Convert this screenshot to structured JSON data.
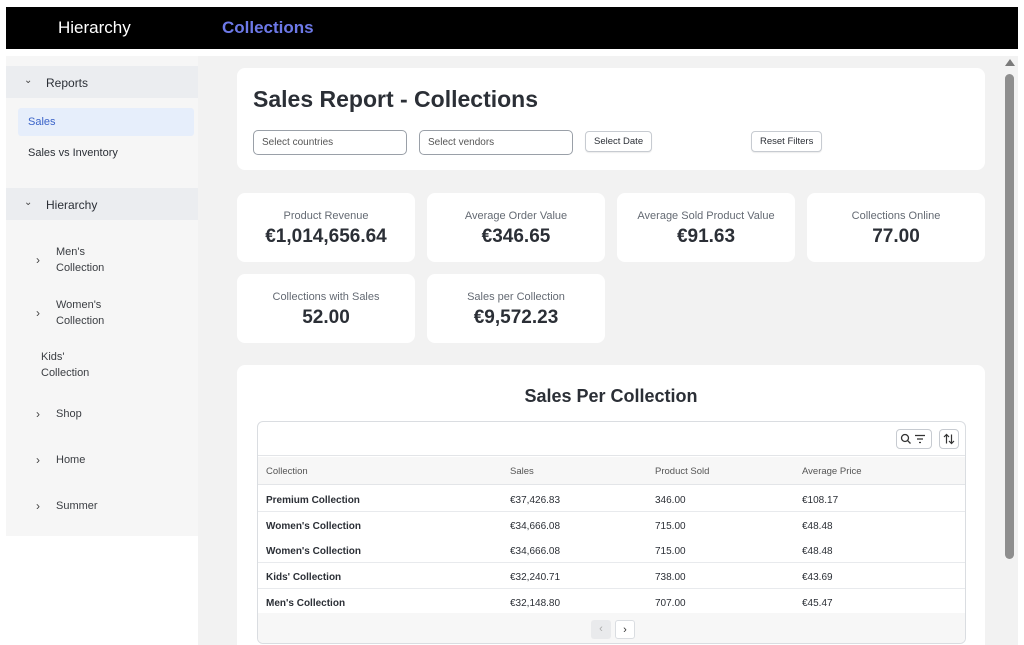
{
  "topbar": {
    "app_title": "Hierarchy",
    "page_title": "Collections"
  },
  "sidebar": {
    "reports_group": "Reports",
    "reports_items": [
      {
        "label": "Sales",
        "active": true
      },
      {
        "label": "Sales vs Inventory",
        "active": false
      }
    ],
    "hierarchy_group": "Hierarchy",
    "hierarchy_items": [
      {
        "line1": "Men's",
        "line2": "Collection",
        "has_children": true
      },
      {
        "line1": "Women's",
        "line2": "Collection",
        "has_children": true
      },
      {
        "line1": "Kids'",
        "line2": "Collection",
        "has_children": false
      },
      {
        "line1": "Shop",
        "line2": "",
        "has_children": true
      },
      {
        "line1": "Home",
        "line2": "",
        "has_children": true
      },
      {
        "line1": "Summer",
        "line2": "",
        "has_children": true
      }
    ]
  },
  "header": {
    "title": "Sales Report - Collections",
    "countries_placeholder": "Select countries",
    "vendors_placeholder": "Select vendors",
    "select_date_label": "Select Date",
    "reset_filters_label": "Reset Filters"
  },
  "kpis": [
    {
      "label": "Product Revenue",
      "value": "€1,014,656.64"
    },
    {
      "label": "Average Order Value",
      "value": "€346.65"
    },
    {
      "label": "Average Sold Product Value",
      "value": "€91.63"
    },
    {
      "label": "Collections Online",
      "value": "77.00"
    },
    {
      "label": "Collections with Sales",
      "value": "52.00"
    },
    {
      "label": "Sales per Collection",
      "value": "€9,572.23"
    }
  ],
  "table": {
    "title": "Sales Per Collection",
    "columns": [
      "Collection",
      "Sales",
      "Product Sold",
      "Average Price"
    ],
    "rows": [
      [
        "Premium Collection",
        "€37,426.83",
        "346.00",
        "€108.17"
      ],
      [
        "Women's Collection",
        "€34,666.08",
        "715.00",
        "€48.48"
      ],
      [
        "Women's Collection",
        "€34,666.08",
        "715.00",
        "€48.48"
      ],
      [
        "Kids' Collection",
        "€32,240.71",
        "738.00",
        "€43.69"
      ],
      [
        "Men's Collection",
        "€32,148.80",
        "707.00",
        "€45.47"
      ]
    ],
    "icons": {
      "search_filter": "search-filter-icon",
      "sort": "sort-icon"
    }
  }
}
